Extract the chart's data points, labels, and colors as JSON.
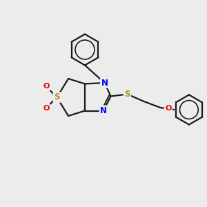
{
  "bg_color": "#ececec",
  "bond_color": "#1a1a1a",
  "N_color": "#0000ee",
  "S_color": "#b8960a",
  "O_color": "#ee0000",
  "line_width": 1.6,
  "figsize": [
    3.0,
    3.0
  ],
  "dpi": 100,
  "xlim": [
    0,
    10
  ],
  "ylim": [
    0,
    10
  ]
}
